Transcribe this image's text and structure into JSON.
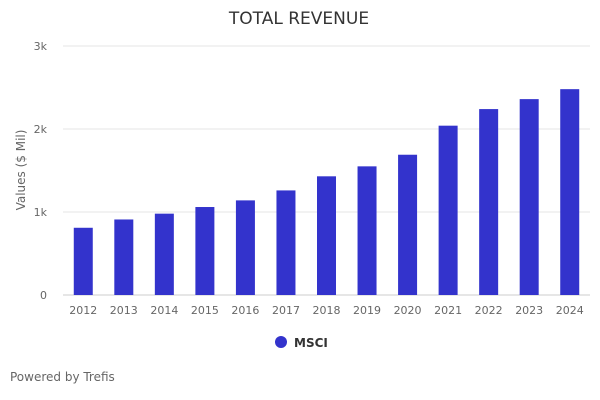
{
  "credit": "Powered by Trefis",
  "chart_data": {
    "type": "bar",
    "title": "TOTAL REVENUE",
    "xlabel": "",
    "ylabel": "Values ($ Mil)",
    "categories": [
      "2012",
      "2013",
      "2014",
      "2015",
      "2016",
      "2017",
      "2018",
      "2019",
      "2020",
      "2021",
      "2022",
      "2023",
      "2024"
    ],
    "series": [
      {
        "name": "MSCI",
        "color": "#3333cc",
        "values": [
          810,
          910,
          980,
          1060,
          1140,
          1260,
          1430,
          1550,
          1690,
          2040,
          2240,
          2360,
          2480
        ]
      }
    ],
    "ylim": [
      0,
      3000
    ],
    "yticks": [
      0,
      1000,
      2000,
      3000
    ],
    "ytick_labels": [
      "0",
      "1k",
      "2k",
      "3k"
    ],
    "grid": true,
    "legend": "bottom-center"
  }
}
